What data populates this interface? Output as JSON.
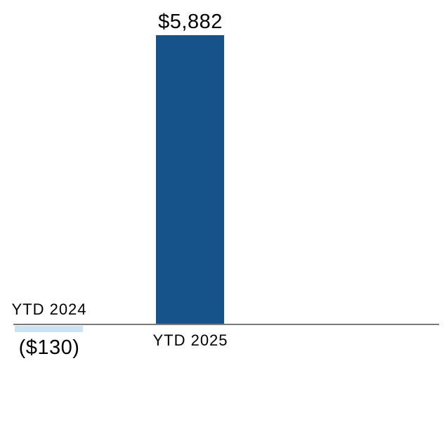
{
  "chart_data": {
    "type": "bar",
    "title": "",
    "xlabel": "",
    "ylabel": "",
    "categories": [
      "YTD 2024",
      "YTD 2025"
    ],
    "values": [
      -130,
      5882
    ],
    "value_labels": [
      "($130)",
      "$5,882"
    ],
    "ylim": [
      -130,
      5882
    ],
    "grid": false,
    "legend": false,
    "bar_colors": [
      "#C9E4F7",
      "#16538B"
    ],
    "axis_line_color": "#7A7A7A",
    "label_color": "#000000",
    "background_color": "#FFFFFF"
  }
}
